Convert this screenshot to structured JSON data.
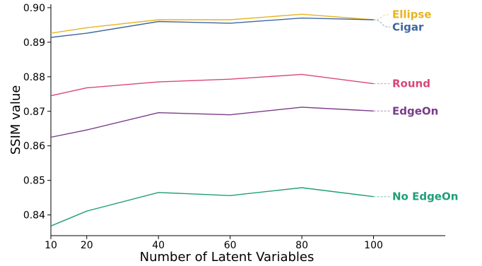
{
  "chart_data": {
    "type": "line",
    "xlabel": "Number of Latent Variables",
    "ylabel": "SSIM value",
    "xlim": [
      10,
      120
    ],
    "ylim": [
      0.834,
      0.901
    ],
    "xticks": [
      10,
      20,
      40,
      60,
      80,
      100
    ],
    "yticks": [
      0.84,
      0.85,
      0.86,
      0.87,
      0.88,
      0.89,
      0.9
    ],
    "ytick_labels": [
      "0.84",
      "0.85",
      "0.86",
      "0.87",
      "0.88",
      "0.89",
      "0.90"
    ],
    "grid": false,
    "legend": "inline-right",
    "x": [
      10,
      20,
      40,
      60,
      80,
      100
    ],
    "series": [
      {
        "name": "Ellipse",
        "color": "#e6b422",
        "values": [
          0.8926,
          0.8942,
          0.8965,
          0.8965,
          0.8981,
          0.8965
        ],
        "label_y": 0.898
      },
      {
        "name": "Cigar",
        "color": "#3f67a0",
        "values": [
          0.8914,
          0.8926,
          0.896,
          0.8955,
          0.897,
          0.8965
        ],
        "label_y": 0.8944
      },
      {
        "name": "Round",
        "color": "#d9467a",
        "values": [
          0.8745,
          0.8768,
          0.8785,
          0.8793,
          0.8807,
          0.878
        ],
        "label_y": 0.878
      },
      {
        "name": "EdgeOn",
        "color": "#7a3a8a",
        "values": [
          0.8625,
          0.8646,
          0.8696,
          0.869,
          0.8712,
          0.8701
        ],
        "label_y": 0.8701
      },
      {
        "name": "No EdgeOn",
        "color": "#1f9e78",
        "values": [
          0.8368,
          0.8411,
          0.8465,
          0.8456,
          0.8479,
          0.8453
        ],
        "label_y": 0.8453
      }
    ]
  }
}
